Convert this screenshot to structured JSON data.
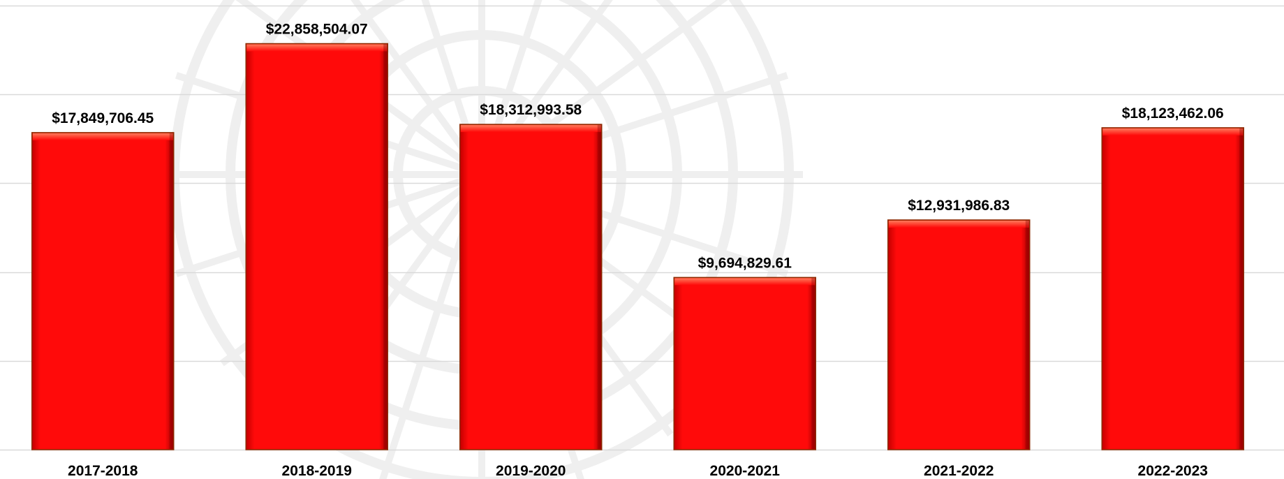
{
  "chart_data": {
    "type": "bar",
    "categories": [
      "2017-2018",
      "2018-2019",
      "2019-2020",
      "2020-2021",
      "2021-2022",
      "2022-2023"
    ],
    "values": [
      17849706.45,
      22858504.07,
      18312993.58,
      9694829.61,
      12931986.83,
      18123462.06
    ],
    "data_labels": [
      "$17,849,706.45",
      "$22,858,504.07",
      "$18,312,993.58",
      "$9,694,829.61",
      "$12,931,986.83",
      "$18,123,462.06"
    ],
    "title": "",
    "xlabel": "",
    "ylabel": "",
    "ylim": [
      0,
      25000000
    ],
    "grid": true,
    "legend": "none",
    "colors": {
      "bar": "#ff0000",
      "bar_edge": "#8b2a00",
      "grid": "#d9d9d9",
      "watermark": "#efefef"
    }
  }
}
